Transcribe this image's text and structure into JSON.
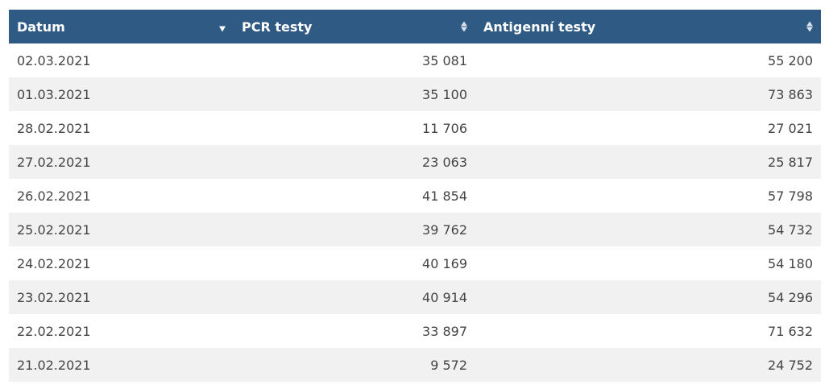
{
  "table": {
    "headers": [
      {
        "label": "Datum",
        "sort": "descending"
      },
      {
        "label": "PCR testy",
        "sort": "none"
      },
      {
        "label": "Antigenní testy",
        "sort": "none"
      }
    ],
    "rows": [
      {
        "datum": "02.03.2021",
        "pcr": "35 081",
        "antigen": "55 200"
      },
      {
        "datum": "01.03.2021",
        "pcr": "35 100",
        "antigen": "73 863"
      },
      {
        "datum": "28.02.2021",
        "pcr": "11 706",
        "antigen": "27 021"
      },
      {
        "datum": "27.02.2021",
        "pcr": "23 063",
        "antigen": "25 817"
      },
      {
        "datum": "26.02.2021",
        "pcr": "41 854",
        "antigen": "57 798"
      },
      {
        "datum": "25.02.2021",
        "pcr": "39 762",
        "antigen": "54 732"
      },
      {
        "datum": "24.02.2021",
        "pcr": "40 169",
        "antigen": "54 180"
      },
      {
        "datum": "23.02.2021",
        "pcr": "40 914",
        "antigen": "54 296"
      },
      {
        "datum": "22.02.2021",
        "pcr": "33 897",
        "antigen": "71 632"
      },
      {
        "datum": "21.02.2021",
        "pcr": "9 572",
        "antigen": "24 752"
      }
    ]
  },
  "colors": {
    "header_bg": "#2f5a84",
    "header_text": "#ffffff",
    "row_alt_bg": "#f1f1f1",
    "cell_text": "#444444"
  },
  "icons": {
    "sorted_desc": "sort-descending-icon",
    "sortable": "sort-both-icon"
  }
}
